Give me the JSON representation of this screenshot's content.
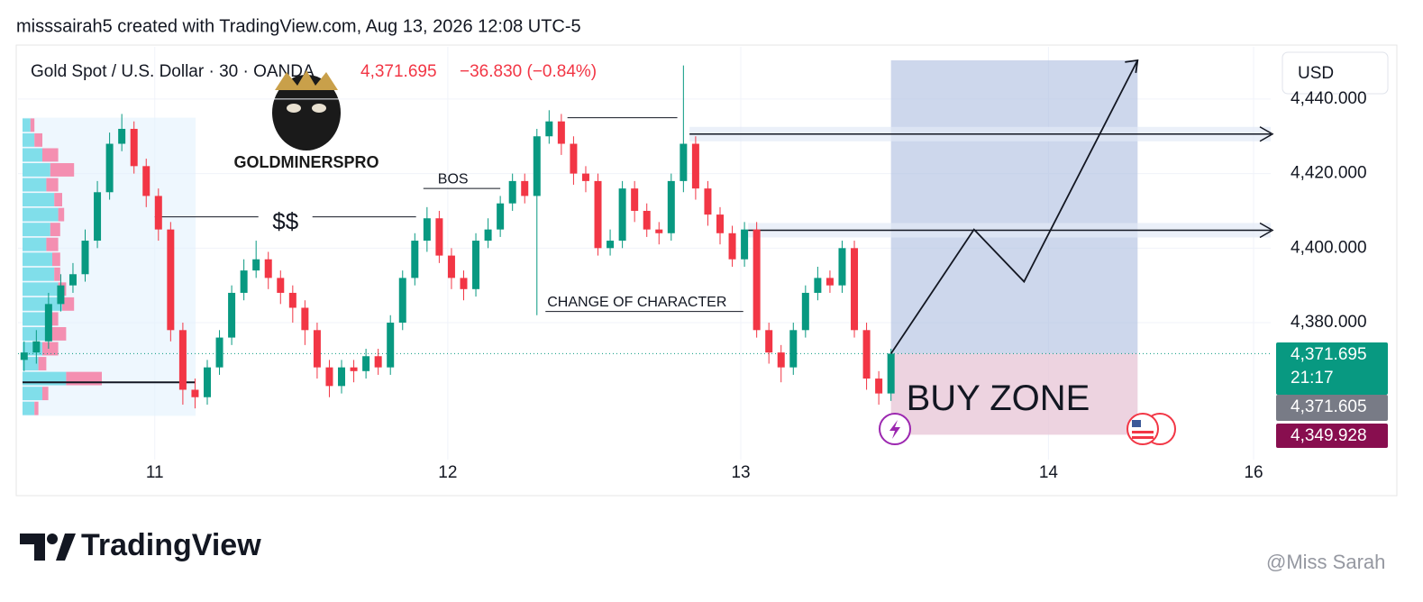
{
  "header": "misssairah5 created with TradingView.com, Aug 13, 2026 12:08 UTC-5",
  "chart_data": {
    "type": "candlestick",
    "title": "Gold Spot / U.S. Dollar · 30 · OANDA",
    "last_price": "4,371.695",
    "change": "−36.830 (−0.84%)",
    "logo_text": "GOLDMINERSPRO",
    "currency": "USD",
    "countdown": "21:17",
    "price_labels": [
      {
        "value": 4371.695,
        "label": "4,371.695",
        "color": "#089981"
      },
      {
        "value": 4371.605,
        "label": "4,371.605",
        "color": "#787b86"
      },
      {
        "value": 4349.928,
        "label": "4,349.928",
        "color": "#880e4f"
      }
    ],
    "up_color": "#089981",
    "down_color": "#f23645",
    "grid": true,
    "xlim": [
      -0.5,
      102.1
    ],
    "ylim": [
      4336,
      4454
    ],
    "xticks": [
      {
        "value": 10.7,
        "label": "11"
      },
      {
        "value": 34.7,
        "label": "12"
      },
      {
        "value": 58.7,
        "label": "13"
      },
      {
        "value": 83.9,
        "label": "14"
      },
      {
        "value": 100.7,
        "label": "16"
      }
    ],
    "yticks": [
      {
        "value": 4380,
        "label": "4,380.000"
      },
      {
        "value": 4400,
        "label": "4,400.000"
      },
      {
        "value": 4420,
        "label": "4,420.000"
      },
      {
        "value": 4440,
        "label": "4,440.000"
      }
    ],
    "x": [
      0,
      1,
      2,
      3,
      4,
      5,
      6,
      7,
      8,
      9,
      10,
      11,
      12,
      13,
      14,
      15,
      16,
      17,
      18,
      19,
      20,
      21,
      22,
      23,
      24,
      25,
      26,
      27,
      28,
      29,
      30,
      31,
      32,
      33,
      34,
      35,
      36,
      37,
      38,
      39,
      40,
      41,
      42,
      43,
      44,
      45,
      46,
      47,
      48,
      49,
      50,
      51,
      52,
      53,
      54,
      55,
      56,
      57,
      58,
      59,
      60,
      61,
      62,
      63,
      64,
      65,
      66,
      67,
      68,
      69,
      70,
      71
    ],
    "opens": [
      4370,
      4372,
      4375,
      4385,
      4390,
      4393,
      4402,
      4415,
      4428,
      4432,
      4422,
      4414,
      4405,
      4378,
      4362,
      4360,
      4368,
      4376,
      4388,
      4394,
      4397,
      4392,
      4388,
      4384,
      4378,
      4368,
      4363,
      4368,
      4367,
      4371,
      4368,
      4380,
      4392,
      4402,
      4408,
      4398,
      4392,
      4389,
      4402,
      4405,
      4412,
      4418,
      4414,
      4430,
      4434,
      4428,
      4420,
      4418,
      4400,
      4402,
      4416,
      4410,
      4405,
      4404,
      4418,
      4428,
      4416,
      4409,
      4404,
      4397,
      4405,
      4378,
      4372,
      4368,
      4378,
      4388,
      4392,
      4390,
      4400,
      4378,
      4365,
      4361
    ],
    "highs": [
      4375,
      4378,
      4388,
      4393,
      4396,
      4405,
      4418,
      4431,
      4436,
      4434,
      4424,
      4416,
      4407,
      4380,
      4365,
      4370,
      4378,
      4390,
      4397,
      4402,
      4399,
      4394,
      4390,
      4386,
      4380,
      4370,
      4370,
      4370,
      4373,
      4373,
      4382,
      4394,
      4404,
      4411,
      4410,
      4400,
      4394,
      4404,
      4408,
      4414,
      4420,
      4420,
      4432,
      4437,
      4436,
      4430,
      4422,
      4420,
      4405,
      4418,
      4418,
      4412,
      4407,
      4420,
      4449,
      4430,
      4418,
      4411,
      4406,
      4407,
      4407,
      4380,
      4374,
      4380,
      4390,
      4395,
      4394,
      4402,
      4402,
      4380,
      4367,
      4373
    ],
    "lows": [
      4367,
      4369,
      4373,
      4383,
      4388,
      4391,
      4400,
      4413,
      4426,
      4420,
      4411,
      4402,
      4375,
      4358,
      4357,
      4358,
      4366,
      4374,
      4386,
      4392,
      4389,
      4385,
      4380,
      4374,
      4365,
      4360,
      4361,
      4364,
      4365,
      4366,
      4366,
      4378,
      4390,
      4399,
      4396,
      4389,
      4386,
      4387,
      4400,
      4403,
      4410,
      4412,
      4382,
      4428,
      4425,
      4417,
      4415,
      4398,
      4398,
      4400,
      4407,
      4403,
      4401,
      4402,
      4415,
      4413,
      4406,
      4401,
      4395,
      4395,
      4376,
      4369,
      4364,
      4366,
      4376,
      4386,
      4388,
      4388,
      4376,
      4362,
      4358,
      4359
    ],
    "closes": [
      4372,
      4375,
      4385,
      4390,
      4393,
      4402,
      4415,
      4428,
      4432,
      4422,
      4414,
      4405,
      4378,
      4362,
      4360,
      4368,
      4376,
      4388,
      4394,
      4397,
      4392,
      4388,
      4384,
      4378,
      4368,
      4363,
      4368,
      4367,
      4371,
      4368,
      4380,
      4392,
      4402,
      4408,
      4398,
      4392,
      4389,
      4402,
      4405,
      4412,
      4418,
      4414,
      4430,
      4434,
      4428,
      4420,
      4418,
      4400,
      4402,
      4416,
      4410,
      4405,
      4404,
      4418,
      4428,
      4416,
      4409,
      4404,
      4397,
      4405,
      4378,
      4372,
      4368,
      4378,
      4388,
      4392,
      4390,
      4400,
      4378,
      4365,
      4361,
      4371.695
    ],
    "volume_profile": {
      "prices": [
        4433,
        4429,
        4425,
        4421,
        4417,
        4413,
        4409,
        4405,
        4401,
        4397,
        4393,
        4389,
        4385,
        4381,
        4377,
        4373,
        4369,
        4365,
        4361,
        4357
      ],
      "up": [
        4,
        6,
        10,
        14,
        12,
        16,
        18,
        14,
        12,
        15,
        16,
        18,
        20,
        14,
        12,
        10,
        8,
        22,
        10,
        6
      ],
      "down": [
        2,
        4,
        8,
        12,
        6,
        4,
        3,
        5,
        6,
        4,
        3,
        4,
        6,
        4,
        10,
        8,
        4,
        18,
        3,
        2
      ]
    },
    "poc": 4364,
    "annotations": [
      {
        "text": "$$",
        "price": 4408.4,
        "x": [
          10.7,
          32.1
        ]
      },
      {
        "text": "BOS",
        "price": 4416,
        "x": [
          32.7,
          39
        ]
      },
      {
        "text": "CHANGE OF CHARACTER",
        "price": 4383,
        "x": [
          42.7,
          58.9
        ]
      }
    ],
    "segments": [
      {
        "price": 4435,
        "x": [
          44.5,
          53.5
        ]
      }
    ],
    "rays": [
      {
        "price": 4430.6,
        "x": 54.5
      },
      {
        "price": 4404.8,
        "x": 59.3
      }
    ],
    "position": {
      "text": "BUY ZONE",
      "x": [
        71,
        91.2
      ],
      "entry": 4371.695,
      "target": 4450.4,
      "stop": 4349.928
    },
    "path": {
      "x": [
        71,
        77.8,
        81.9,
        91.2
      ],
      "values": [
        4371.695,
        4405,
        4391,
        4450.4
      ]
    }
  },
  "footer": {
    "brand": "TradingView",
    "watermark": "@Miss Sarah"
  }
}
